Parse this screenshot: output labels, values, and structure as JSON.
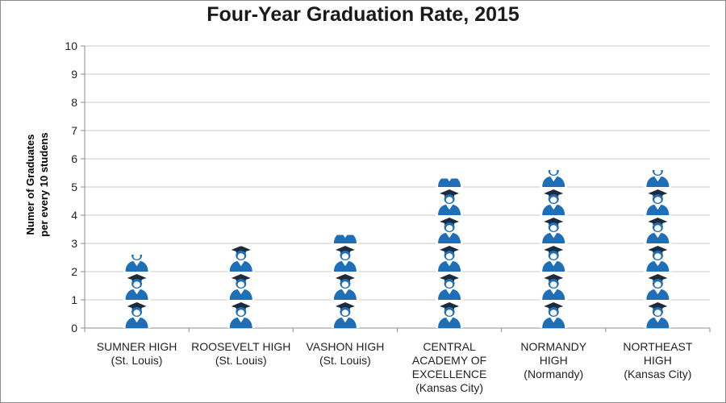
{
  "chart_data": {
    "type": "bar",
    "title": "Four-Year Graduation Rate, 2015",
    "ylabel_lines": [
      "Numer of Graduates",
      "per every 10 studens"
    ],
    "xlabel": "",
    "ylim": [
      0,
      10
    ],
    "yticks": [
      0,
      1,
      2,
      3,
      4,
      5,
      6,
      7,
      8,
      9,
      10
    ],
    "grid": true,
    "bar_style": "stacked graduate icons",
    "categories": [
      {
        "lines": [
          "SUMNER HIGH",
          "(St. Louis)"
        ]
      },
      {
        "lines": [
          "ROOSEVELT HIGH",
          "(St. Louis)"
        ]
      },
      {
        "lines": [
          "VASHON HIGH",
          "(St. Louis)"
        ]
      },
      {
        "lines": [
          "CENTRAL",
          "ACADEMY OF",
          "EXCELLENCE",
          "(Kansas City)"
        ]
      },
      {
        "lines": [
          "NORMANDY",
          "HIGH",
          "(Normandy)"
        ]
      },
      {
        "lines": [
          "NORTHEAST",
          "HIGH",
          "(Kansas City)"
        ]
      }
    ],
    "values": [
      2.6,
      2.9,
      3.3,
      5.3,
      5.6,
      5.6
    ],
    "colors": {
      "icon": "#1f6fb8",
      "icon_dark": "#1a3a5a",
      "grid": "#c8c8c8",
      "axis": "#8c8c8c"
    }
  }
}
